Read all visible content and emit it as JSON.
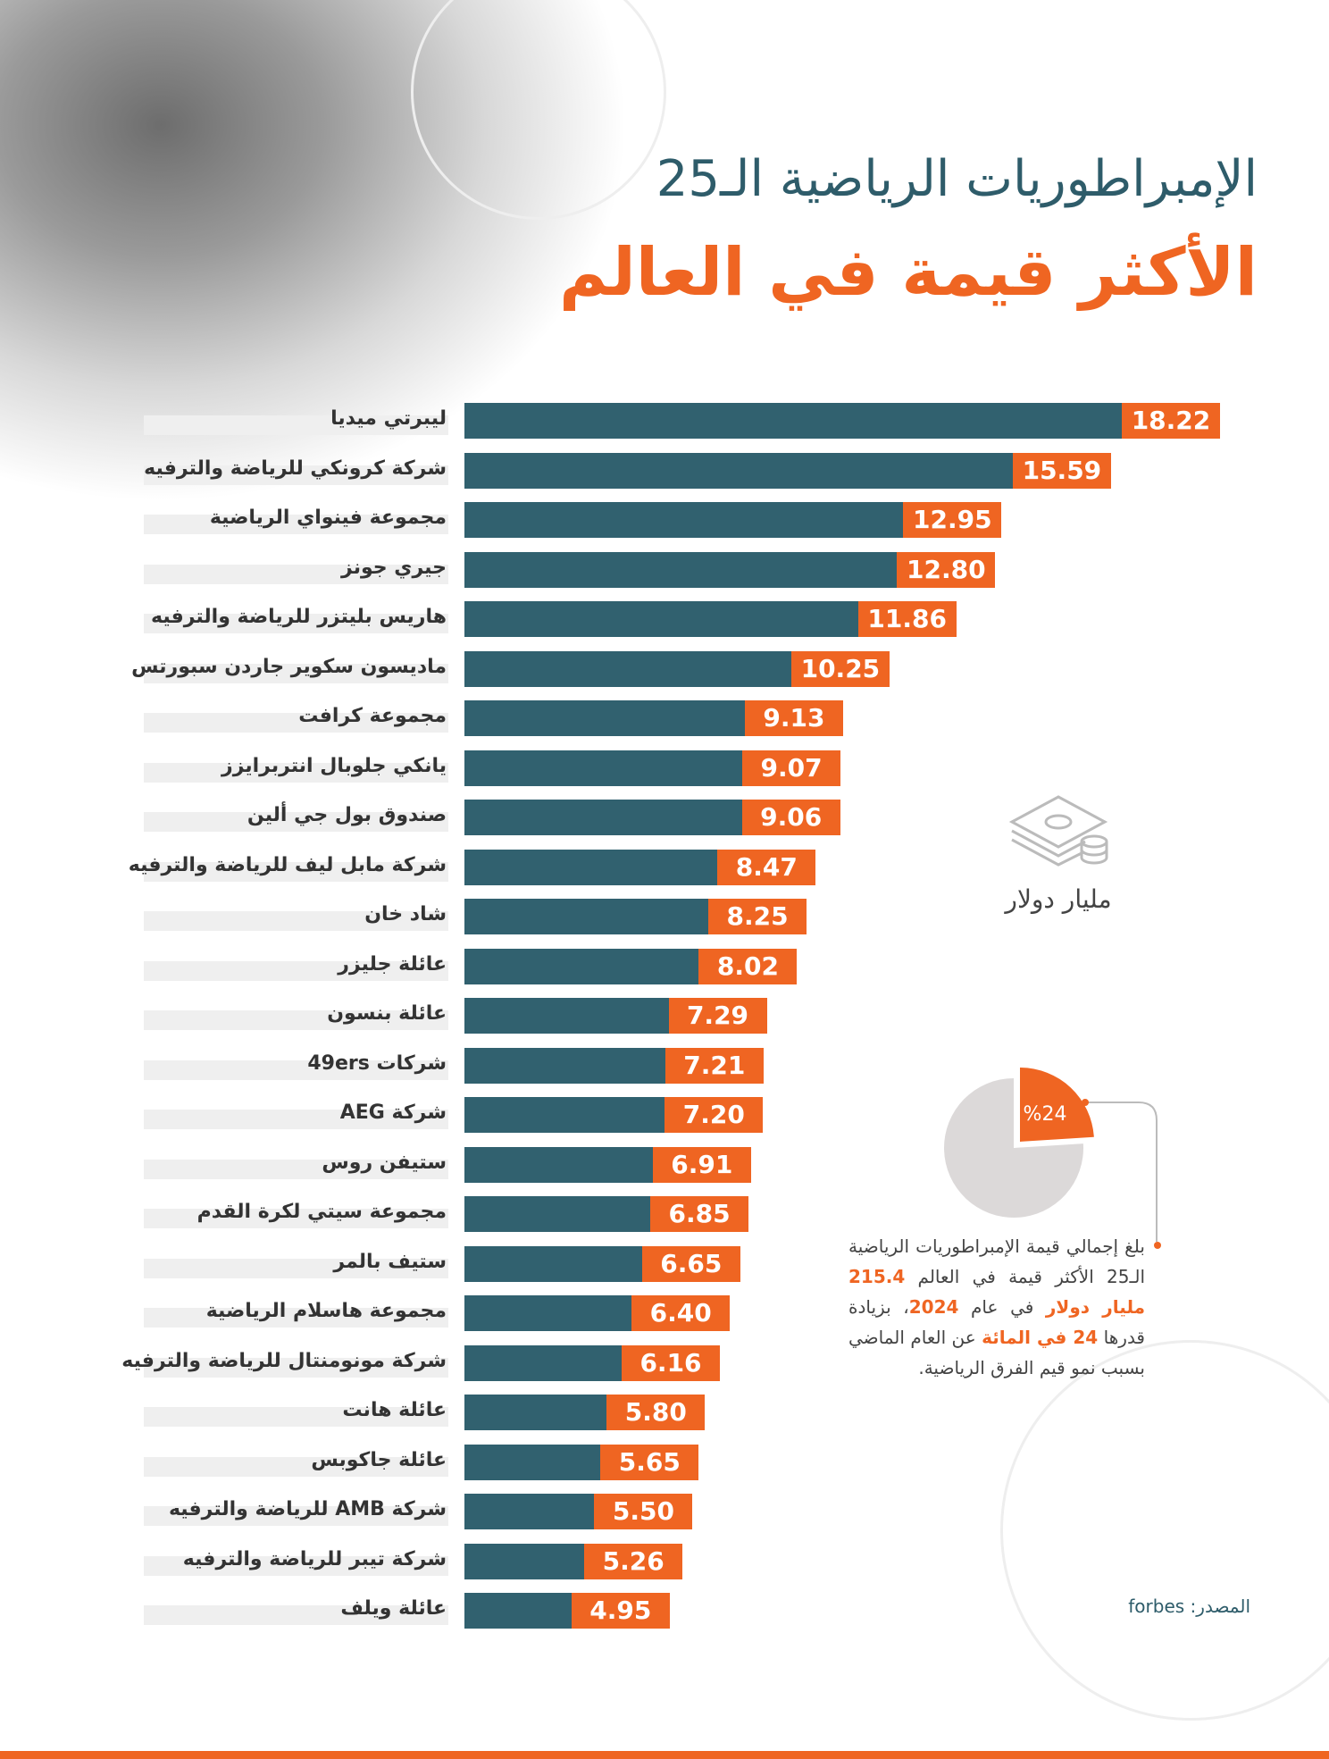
{
  "title": {
    "line1": "الإمبراطوريات الرياضية الـ25",
    "line2": "الأكثر قيمة في العالم"
  },
  "unit_label": "مليار دولار",
  "chart_data": {
    "type": "bar",
    "orientation": "horizontal",
    "title": "الإمبراطوريات الرياضية الـ25 الأكثر قيمة في العالم",
    "unit": "مليار دولار",
    "categories": [
      "ليبرتي ميديا",
      "شركة كرونكي للرياضة والترفيه",
      "مجموعة فينواي الرياضية",
      "جيري جونز",
      "هاريس بليتزر للرياضة والترفيه",
      "ماديسون سكوير جاردن سبورتس",
      "مجموعة كرافت",
      "يانكي جلوبال انتربرايزز",
      "صندوق بول جي ألين",
      "شركة مابل ليف للرياضة والترفيه",
      "شاد خان",
      "عائلة جليزر",
      "عائلة بنسون",
      "شركات 49ers",
      "شركة AEG",
      "ستيفن روس",
      "مجموعة سيتي لكرة القدم",
      "ستيف بالمر",
      "مجموعة هاسلام الرياضية",
      "شركة مونومنتال للرياضة والترفيه",
      "عائلة هانت",
      "عائلة جاكوبس",
      "شركة AMB للرياضة والترفيه",
      "شركة تيبر للرياضة والترفيه",
      "عائلة ويلف"
    ],
    "values": [
      18.22,
      15.59,
      12.95,
      12.8,
      11.86,
      10.25,
      9.13,
      9.07,
      9.06,
      8.47,
      8.25,
      8.02,
      7.29,
      7.21,
      7.2,
      6.91,
      6.85,
      6.65,
      6.4,
      6.16,
      5.8,
      5.65,
      5.5,
      5.26,
      4.95
    ],
    "labels": [
      "18.22",
      "15.59",
      "12.95",
      "12.80",
      "11.86",
      "10.25",
      "9.13",
      "9.07",
      "9.06",
      "8.47",
      "8.25",
      "8.02",
      "7.29",
      "7.21",
      "7.20",
      "6.91",
      "6.85",
      "6.65",
      "6.40",
      "6.16",
      "5.80",
      "5.65",
      "5.50",
      "5.26",
      "4.95"
    ],
    "xlim": [
      0,
      18.22
    ]
  },
  "pie": {
    "percent": 24,
    "label": "%24"
  },
  "note": {
    "p1": "بلغ إجمالي قيمة الإمبراطوريات الرياضية الـ25 الأكثر قيمة في العالم ",
    "h1": "215.4 مليار دولار",
    "p2": " في عام ",
    "h2": "2024",
    "p3": "، بزيادة قدرها ",
    "h3": "24 في المائة",
    "p4": " عن العام الماضي بسبب نمو قيم الفرق الرياضية."
  },
  "source": "المصدر: forbes",
  "colors": {
    "bar": "#31616f",
    "accent": "#ef6522",
    "title": "#2e5c6a"
  }
}
